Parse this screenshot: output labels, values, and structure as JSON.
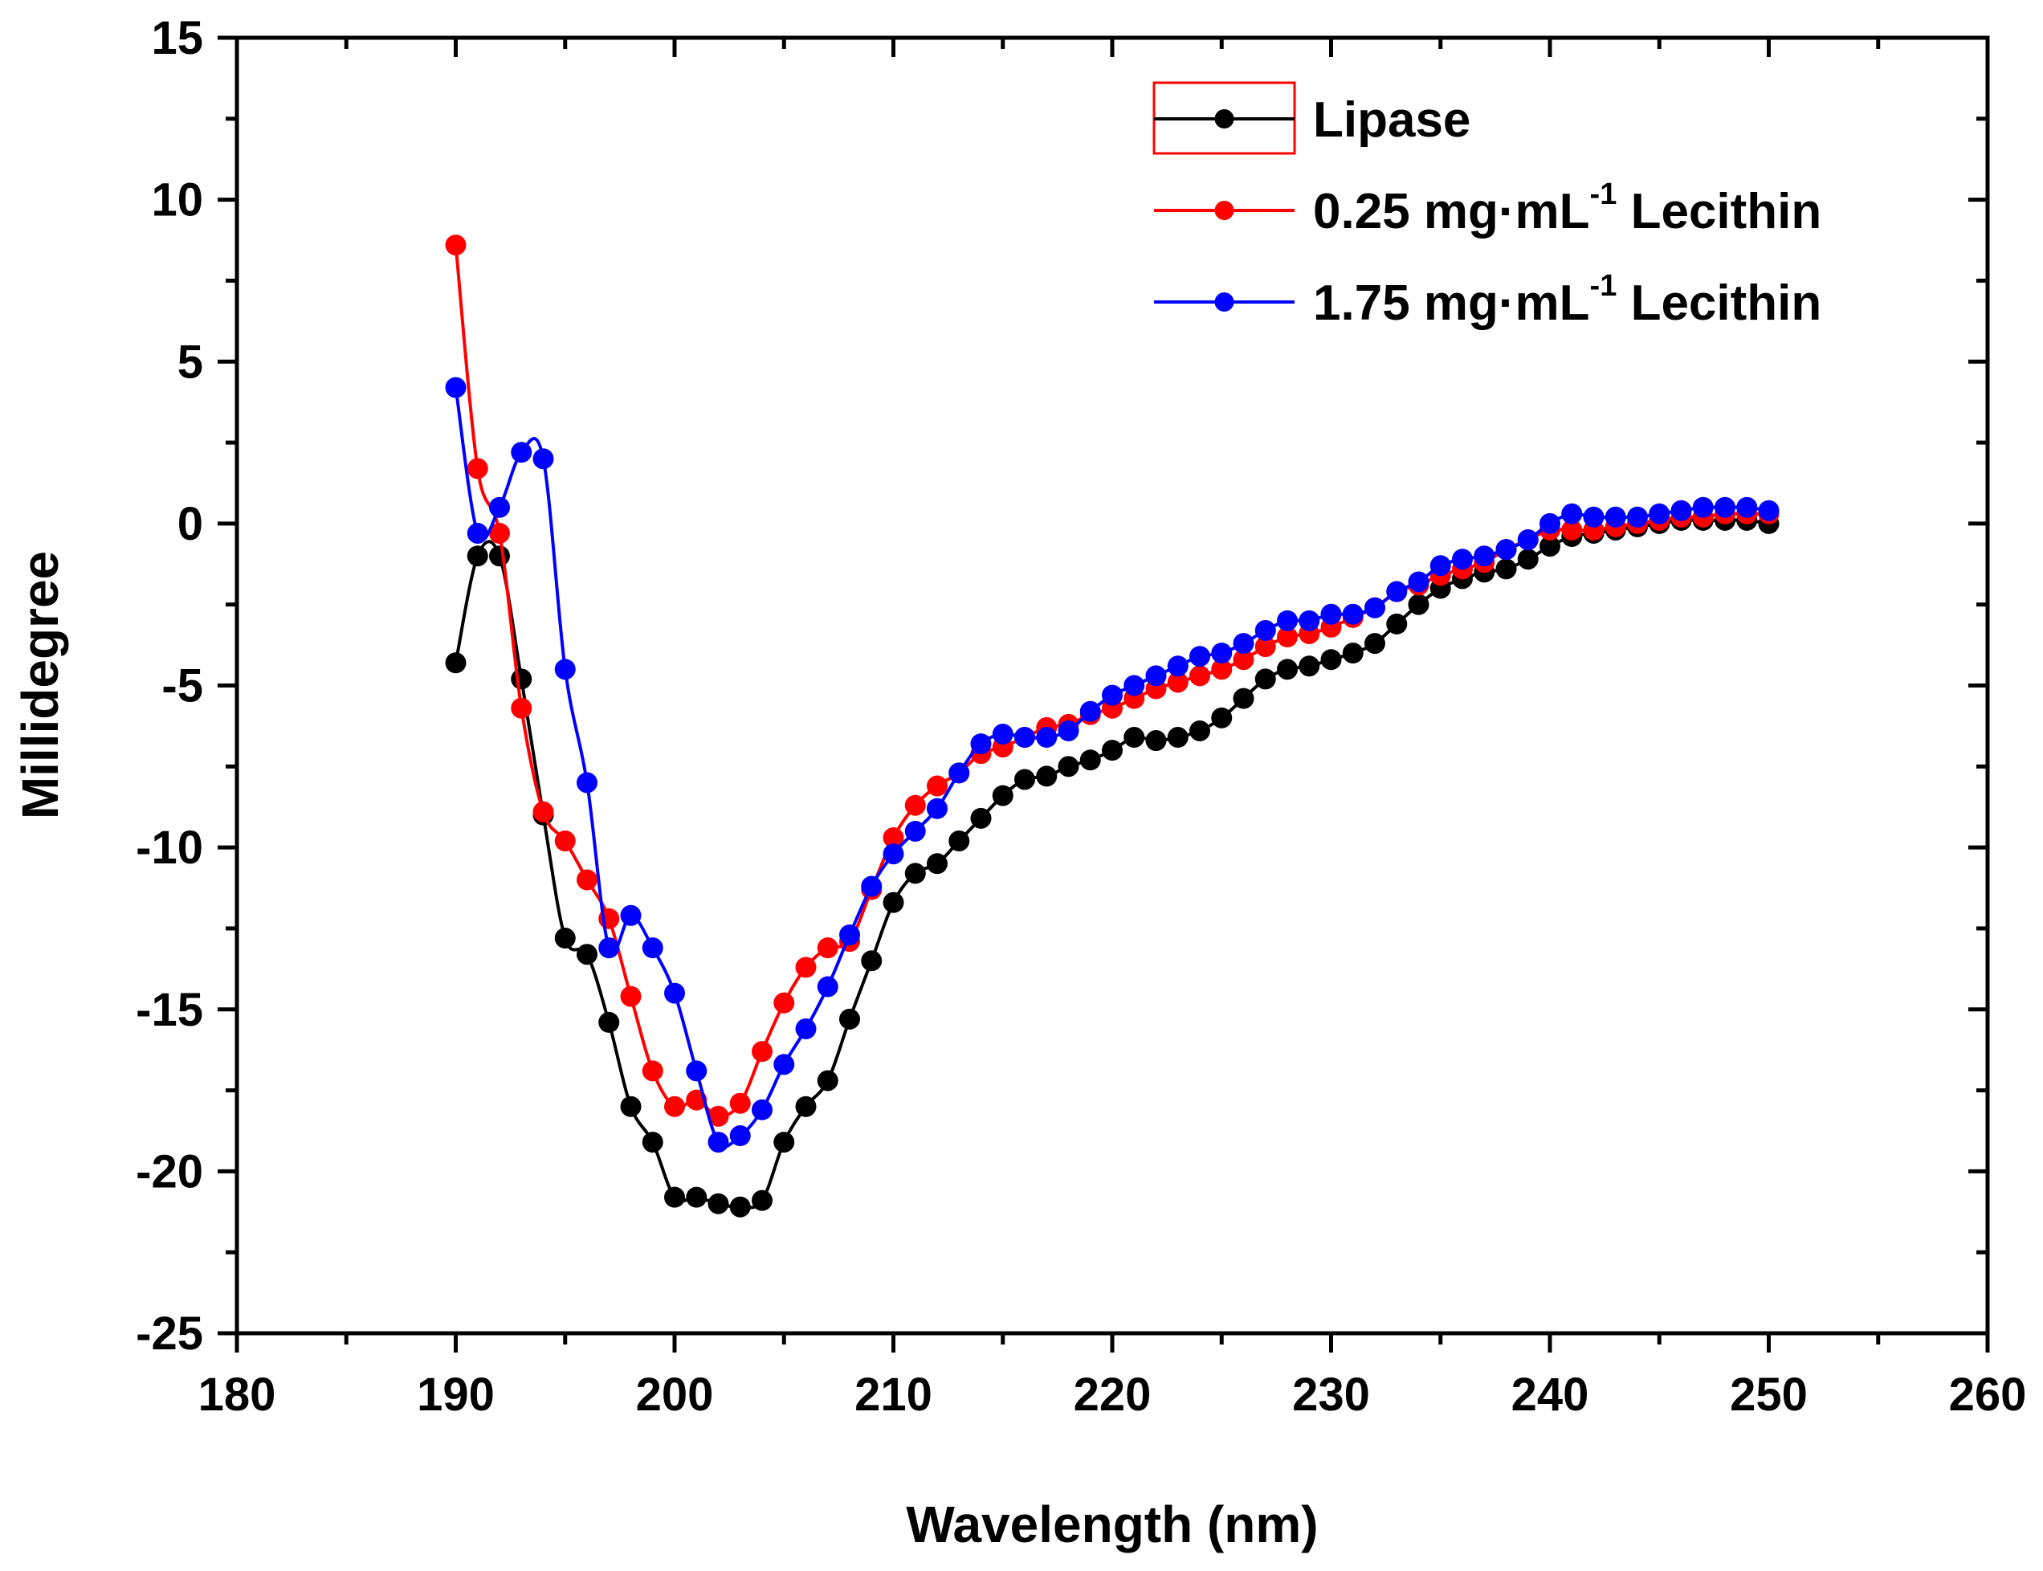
{
  "chart_data": {
    "type": "line",
    "title": "",
    "xlabel": "Wavelength (nm)",
    "ylabel": "Millidegree",
    "xlim": [
      180,
      260
    ],
    "ylim": [
      -25,
      15
    ],
    "xticks": [
      180,
      190,
      200,
      210,
      220,
      230,
      240,
      250,
      260
    ],
    "yticks": [
      15,
      10,
      5,
      0,
      -5,
      -10,
      -15,
      -20,
      -25
    ],
    "xtick_labels": [
      "180",
      "190",
      "200",
      "210",
      "220",
      "230",
      "240",
      "250",
      "260"
    ],
    "ytick_labels": [
      "15",
      "10",
      "5",
      "0",
      "-5",
      "-10",
      "-15",
      "-20",
      "-25"
    ],
    "grid": false,
    "legend_position": "top-right",
    "x": [
      190,
      191,
      192,
      193,
      194,
      195,
      196,
      197,
      198,
      199,
      200,
      201,
      202,
      203,
      204,
      205,
      206,
      207,
      208,
      209,
      210,
      211,
      212,
      213,
      214,
      215,
      216,
      217,
      218,
      219,
      220,
      221,
      222,
      223,
      224,
      225,
      226,
      227,
      228,
      229,
      230,
      231,
      232,
      233,
      234,
      235,
      236,
      237,
      238,
      239,
      240,
      241,
      242,
      243,
      244,
      245,
      246,
      247,
      248,
      249,
      250
    ],
    "series": [
      {
        "name": "Lipase",
        "legend_main": "Lipase",
        "legend_sup": "",
        "legend_tail": "",
        "color": "#000000",
        "values": [
          -4.3,
          -1.0,
          -1.0,
          -4.8,
          -9.0,
          -12.8,
          -13.3,
          -15.4,
          -18.0,
          -19.1,
          -20.8,
          -20.8,
          -21.0,
          -21.1,
          -20.9,
          -19.1,
          -18.0,
          -17.2,
          -15.3,
          -13.5,
          -11.7,
          -10.8,
          -10.5,
          -9.8,
          -9.1,
          -8.4,
          -7.9,
          -7.8,
          -7.5,
          -7.3,
          -7.0,
          -6.6,
          -6.7,
          -6.6,
          -6.4,
          -6.0,
          -5.4,
          -4.8,
          -4.5,
          -4.4,
          -4.2,
          -4.0,
          -3.7,
          -3.1,
          -2.5,
          -2.0,
          -1.7,
          -1.5,
          -1.4,
          -1.1,
          -0.7,
          -0.4,
          -0.3,
          -0.2,
          -0.1,
          0.0,
          0.1,
          0.1,
          0.1,
          0.1,
          0.0
        ]
      },
      {
        "name": "0.25 mg·mL-1 Lecithin",
        "legend_main": "0.25 mg·mL",
        "legend_sup": "-1",
        "legend_tail": " Lecithin",
        "color": "#ff0000",
        "values": [
          8.6,
          1.7,
          -0.3,
          -5.7,
          -8.9,
          -9.8,
          -11.0,
          -12.2,
          -14.6,
          -16.9,
          -18.0,
          -17.8,
          -18.3,
          -17.9,
          -16.3,
          -14.8,
          -13.7,
          -13.1,
          -12.9,
          -11.3,
          -9.7,
          -8.7,
          -8.1,
          -7.7,
          -7.1,
          -6.9,
          -6.6,
          -6.3,
          -6.2,
          -5.9,
          -5.7,
          -5.4,
          -5.1,
          -4.9,
          -4.7,
          -4.5,
          -4.2,
          -3.8,
          -3.5,
          -3.4,
          -3.2,
          -2.9,
          -2.6,
          -2.1,
          -1.9,
          -1.6,
          -1.4,
          -1.2,
          -0.8,
          -0.5,
          -0.2,
          -0.2,
          -0.2,
          -0.1,
          0.0,
          0.1,
          0.2,
          0.2,
          0.3,
          0.3,
          0.3
        ]
      },
      {
        "name": "1.75 mg·mL-1 Lecithin",
        "legend_main": "1.75 mg·mL",
        "legend_sup": "-1",
        "legend_tail": " Lecithin",
        "color": "#0000ff",
        "values": [
          4.2,
          -0.3,
          0.5,
          2.2,
          2.0,
          -4.5,
          -8.0,
          -13.1,
          -12.1,
          -13.1,
          -14.5,
          -16.9,
          -19.1,
          -18.9,
          -18.1,
          -16.7,
          -15.6,
          -14.3,
          -12.7,
          -11.2,
          -10.2,
          -9.5,
          -8.8,
          -7.7,
          -6.8,
          -6.5,
          -6.6,
          -6.6,
          -6.4,
          -5.8,
          -5.3,
          -5.0,
          -4.7,
          -4.4,
          -4.1,
          -4.0,
          -3.7,
          -3.3,
          -3.0,
          -3.0,
          -2.8,
          -2.8,
          -2.6,
          -2.1,
          -1.8,
          -1.3,
          -1.1,
          -1.0,
          -0.8,
          -0.5,
          0.0,
          0.3,
          0.2,
          0.2,
          0.2,
          0.3,
          0.4,
          0.5,
          0.5,
          0.5,
          0.4
        ]
      }
    ]
  }
}
